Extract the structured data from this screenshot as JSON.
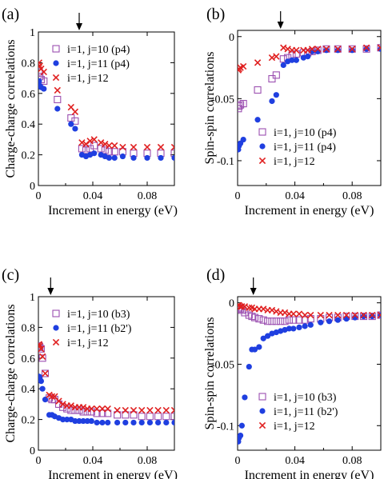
{
  "chart_data": [
    {
      "panel_label": "(a)",
      "type": "scatter",
      "xlabel": "Increment in energy (eV)",
      "ylabel": "Charge-charge correlations",
      "xlim": [
        0,
        0.1
      ],
      "ylim": [
        0,
        1
      ],
      "xticks": [
        0,
        0.04,
        0.08
      ],
      "xtick_labels": [
        "0",
        "0.04",
        "0.08"
      ],
      "yticks": [
        0,
        0.2,
        0.4,
        0.6,
        0.8,
        1
      ],
      "ytick_labels": [
        "0",
        "0.2",
        "0.4",
        "0.6",
        "0.8",
        "1"
      ],
      "arrow_x": 0.03,
      "legend_position": "top-right",
      "series": [
        {
          "name": "i=1, j=10 (p4)",
          "marker": "open-square",
          "color": "#9b4fb0",
          "x": [
            0.0005,
            0.001,
            0.002,
            0.004,
            0.014,
            0.024,
            0.027,
            0.032,
            0.035,
            0.038,
            0.041,
            0.046,
            0.049,
            0.052,
            0.056,
            0.062,
            0.07,
            0.08,
            0.09,
            0.1
          ],
          "y": [
            0.74,
            0.71,
            0.69,
            0.68,
            0.56,
            0.44,
            0.42,
            0.24,
            0.23,
            0.24,
            0.26,
            0.24,
            0.23,
            0.22,
            0.22,
            0.22,
            0.21,
            0.21,
            0.21,
            0.21
          ]
        },
        {
          "name": "i=1, j=11 (p4)",
          "marker": "filled-circle",
          "color": "#1f3fe0",
          "x": [
            0.0005,
            0.001,
            0.002,
            0.004,
            0.014,
            0.024,
            0.027,
            0.032,
            0.035,
            0.038,
            0.041,
            0.046,
            0.049,
            0.052,
            0.056,
            0.062,
            0.07,
            0.08,
            0.09,
            0.1
          ],
          "y": [
            0.68,
            0.65,
            0.64,
            0.63,
            0.5,
            0.4,
            0.37,
            0.2,
            0.19,
            0.2,
            0.21,
            0.2,
            0.19,
            0.18,
            0.18,
            0.19,
            0.18,
            0.18,
            0.18,
            0.18
          ]
        },
        {
          "name": "i=1, j=12",
          "marker": "cross",
          "color": "#e02020",
          "x": [
            0.0005,
            0.001,
            0.002,
            0.004,
            0.014,
            0.024,
            0.027,
            0.032,
            0.035,
            0.038,
            0.041,
            0.046,
            0.049,
            0.052,
            0.056,
            0.062,
            0.07,
            0.08,
            0.09,
            0.1
          ],
          "y": [
            0.8,
            0.78,
            0.76,
            0.74,
            0.62,
            0.51,
            0.48,
            0.28,
            0.27,
            0.29,
            0.3,
            0.28,
            0.27,
            0.26,
            0.26,
            0.25,
            0.25,
            0.25,
            0.25,
            0.25
          ]
        }
      ]
    },
    {
      "panel_label": "(b)",
      "type": "scatter",
      "xlabel": "Increment in energy (eV)",
      "ylabel": "Spin-spin correlations",
      "xlim": [
        0,
        0.1
      ],
      "ylim": [
        -0.12,
        0.005
      ],
      "xticks": [
        0,
        0.04,
        0.08
      ],
      "xtick_labels": [
        "0",
        "0.04",
        "0.08"
      ],
      "yticks": [
        -0.1,
        -0.05,
        0
      ],
      "ytick_labels": [
        "-0.1",
        "-0.05",
        "0"
      ],
      "arrow_x": 0.03,
      "legend_position": "bottom-right",
      "series": [
        {
          "name": "i=1, j=10 (p4)",
          "marker": "open-square",
          "color": "#9b4fb0",
          "x": [
            0.0005,
            0.001,
            0.002,
            0.004,
            0.014,
            0.024,
            0.027,
            0.032,
            0.035,
            0.038,
            0.041,
            0.046,
            0.049,
            0.052,
            0.056,
            0.062,
            0.07,
            0.08,
            0.09,
            0.1
          ],
          "y": [
            -0.058,
            -0.056,
            -0.055,
            -0.054,
            -0.043,
            -0.034,
            -0.031,
            -0.018,
            -0.017,
            -0.015,
            -0.014,
            -0.013,
            -0.013,
            -0.012,
            -0.011,
            -0.01,
            -0.01,
            -0.01,
            -0.01,
            -0.009
          ]
        },
        {
          "name": "i=1, j=11 (p4)",
          "marker": "filled-circle",
          "color": "#1f3fe0",
          "x": [
            0.0005,
            0.001,
            0.002,
            0.004,
            0.014,
            0.024,
            0.027,
            0.032,
            0.035,
            0.038,
            0.041,
            0.046,
            0.049,
            0.052,
            0.056,
            0.062,
            0.07,
            0.08,
            0.09,
            0.1
          ],
          "y": [
            -0.091,
            -0.088,
            -0.086,
            -0.083,
            -0.067,
            -0.052,
            -0.047,
            -0.023,
            -0.02,
            -0.019,
            -0.019,
            -0.017,
            -0.016,
            -0.012,
            -0.012,
            -0.011,
            -0.011,
            -0.011,
            -0.01,
            -0.01
          ]
        },
        {
          "name": "i=1, j=12",
          "marker": "cross",
          "color": "#e02020",
          "x": [
            0.0005,
            0.001,
            0.002,
            0.004,
            0.014,
            0.024,
            0.027,
            0.032,
            0.035,
            0.038,
            0.041,
            0.046,
            0.049,
            0.052,
            0.056,
            0.062,
            0.07,
            0.08,
            0.09,
            0.1
          ],
          "y": [
            -0.027,
            -0.026,
            -0.025,
            -0.024,
            -0.021,
            -0.017,
            -0.016,
            -0.009,
            -0.01,
            -0.011,
            -0.011,
            -0.011,
            -0.011,
            -0.01,
            -0.01,
            -0.01,
            -0.01,
            -0.01,
            -0.009,
            -0.009
          ]
        }
      ]
    },
    {
      "panel_label": "(c)",
      "type": "scatter",
      "xlabel": "Increment in energy (eV)",
      "ylabel": "Charge-charge correlations",
      "xlim": [
        0,
        0.1
      ],
      "ylim": [
        0,
        1
      ],
      "xticks": [
        0,
        0.04,
        0.08
      ],
      "xtick_labels": [
        "0",
        "0.04",
        "0.08"
      ],
      "yticks": [
        0,
        0.2,
        0.4,
        0.6,
        0.8,
        1
      ],
      "ytick_labels": [
        "0",
        "0.2",
        "0.4",
        "0.6",
        "0.8",
        "1"
      ],
      "arrow_x": 0.009,
      "legend_position": "top-right",
      "series": [
        {
          "name": "i=1, j=10 (b3)",
          "marker": "open-square",
          "color": "#9b4fb0",
          "x": [
            0.0005,
            0.001,
            0.002,
            0.003,
            0.005,
            0.008,
            0.01,
            0.012,
            0.015,
            0.018,
            0.021,
            0.024,
            0.027,
            0.03,
            0.033,
            0.036,
            0.039,
            0.043,
            0.047,
            0.051,
            0.058,
            0.064,
            0.07,
            0.076,
            0.082,
            0.088,
            0.094,
            0.1
          ],
          "y": [
            0.68,
            0.67,
            0.66,
            0.6,
            0.5,
            0.34,
            0.33,
            0.33,
            0.3,
            0.28,
            0.27,
            0.26,
            0.26,
            0.26,
            0.25,
            0.25,
            0.25,
            0.24,
            0.24,
            0.24,
            0.23,
            0.23,
            0.23,
            0.22,
            0.22,
            0.22,
            0.22,
            0.22
          ]
        },
        {
          "name": "i=1, j=11 (b2')",
          "marker": "filled-circle",
          "color": "#1f3fe0",
          "x": [
            0.0005,
            0.001,
            0.002,
            0.003,
            0.005,
            0.008,
            0.01,
            0.012,
            0.015,
            0.018,
            0.021,
            0.024,
            0.027,
            0.03,
            0.033,
            0.036,
            0.039,
            0.043,
            0.047,
            0.051,
            0.058,
            0.064,
            0.07,
            0.076,
            0.082,
            0.088,
            0.094,
            0.1
          ],
          "y": [
            0.48,
            0.47,
            0.45,
            0.4,
            0.33,
            0.23,
            0.23,
            0.22,
            0.21,
            0.2,
            0.2,
            0.2,
            0.19,
            0.19,
            0.19,
            0.19,
            0.19,
            0.18,
            0.18,
            0.18,
            0.18,
            0.18,
            0.18,
            0.18,
            0.18,
            0.18,
            0.18,
            0.18
          ]
        },
        {
          "name": "i=1, j=12",
          "marker": "cross",
          "color": "#e02020",
          "x": [
            0.0005,
            0.001,
            0.002,
            0.003,
            0.005,
            0.008,
            0.01,
            0.012,
            0.015,
            0.018,
            0.021,
            0.024,
            0.027,
            0.03,
            0.033,
            0.036,
            0.039,
            0.043,
            0.047,
            0.051,
            0.058,
            0.064,
            0.07,
            0.076,
            0.082,
            0.088,
            0.094,
            0.1
          ],
          "y": [
            0.69,
            0.68,
            0.66,
            0.61,
            0.5,
            0.36,
            0.35,
            0.35,
            0.32,
            0.3,
            0.29,
            0.29,
            0.28,
            0.28,
            0.28,
            0.27,
            0.27,
            0.27,
            0.27,
            0.27,
            0.26,
            0.26,
            0.26,
            0.26,
            0.26,
            0.26,
            0.26,
            0.26
          ]
        }
      ]
    },
    {
      "panel_label": "(d)",
      "type": "scatter",
      "xlabel": "Increment in energy (eV)",
      "ylabel": "Spin-spin correlations",
      "xlim": [
        0,
        0.1
      ],
      "ylim": [
        -0.12,
        0.005
      ],
      "xticks": [
        0,
        0.04,
        0.08
      ],
      "xtick_labels": [
        "0",
        "0.04",
        "0.08"
      ],
      "yticks": [
        -0.1,
        -0.05,
        0
      ],
      "ytick_labels": [
        "-0.1",
        "-0.05",
        "0"
      ],
      "arrow_x": 0.011,
      "legend_position": "bottom-right",
      "series": [
        {
          "name": "i=1, j=10 (b3)",
          "marker": "open-square",
          "color": "#9b4fb0",
          "x": [
            0.0005,
            0.001,
            0.002,
            0.003,
            0.005,
            0.008,
            0.01,
            0.012,
            0.015,
            0.018,
            0.021,
            0.024,
            0.027,
            0.03,
            0.033,
            0.036,
            0.039,
            0.043,
            0.047,
            0.051,
            0.058,
            0.064,
            0.07,
            0.076,
            0.082,
            0.088,
            0.094,
            0.1
          ],
          "y": [
            -0.004,
            -0.005,
            -0.005,
            -0.006,
            -0.008,
            -0.01,
            -0.011,
            -0.012,
            -0.013,
            -0.014,
            -0.015,
            -0.015,
            -0.015,
            -0.015,
            -0.015,
            -0.014,
            -0.014,
            -0.014,
            -0.014,
            -0.013,
            -0.013,
            -0.012,
            -0.012,
            -0.011,
            -0.011,
            -0.011,
            -0.011,
            -0.01
          ]
        },
        {
          "name": "i=1, j=11 (b2')",
          "marker": "filled-circle",
          "color": "#1f3fe0",
          "x": [
            0.0005,
            0.001,
            0.002,
            0.003,
            0.005,
            0.008,
            0.01,
            0.012,
            0.015,
            0.018,
            0.021,
            0.024,
            0.027,
            0.03,
            0.033,
            0.036,
            0.039,
            0.043,
            0.047,
            0.051,
            0.058,
            0.064,
            0.07,
            0.076,
            0.082,
            0.088,
            0.094,
            0.1
          ],
          "y": [
            -0.113,
            -0.11,
            -0.108,
            -0.1,
            -0.077,
            -0.052,
            -0.038,
            -0.038,
            -0.036,
            -0.029,
            -0.027,
            -0.025,
            -0.024,
            -0.023,
            -0.022,
            -0.021,
            -0.021,
            -0.02,
            -0.019,
            -0.018,
            -0.016,
            -0.015,
            -0.014,
            -0.013,
            -0.012,
            -0.011,
            -0.011,
            -0.01
          ]
        },
        {
          "name": "i=1, j=12",
          "marker": "cross",
          "color": "#e02020",
          "x": [
            0.0005,
            0.001,
            0.002,
            0.003,
            0.005,
            0.008,
            0.01,
            0.012,
            0.015,
            0.018,
            0.021,
            0.024,
            0.027,
            0.03,
            0.033,
            0.036,
            0.039,
            0.043,
            0.047,
            0.051,
            0.058,
            0.064,
            0.07,
            0.076,
            0.082,
            0.088,
            0.094,
            0.1
          ],
          "y": [
            -0.002,
            -0.002,
            -0.003,
            -0.003,
            -0.003,
            -0.004,
            -0.004,
            -0.005,
            -0.005,
            -0.005,
            -0.006,
            -0.006,
            -0.007,
            -0.008,
            -0.008,
            -0.009,
            -0.009,
            -0.009,
            -0.01,
            -0.01,
            -0.01,
            -0.01,
            -0.01,
            -0.01,
            -0.01,
            -0.01,
            -0.01,
            -0.01
          ]
        }
      ]
    }
  ]
}
